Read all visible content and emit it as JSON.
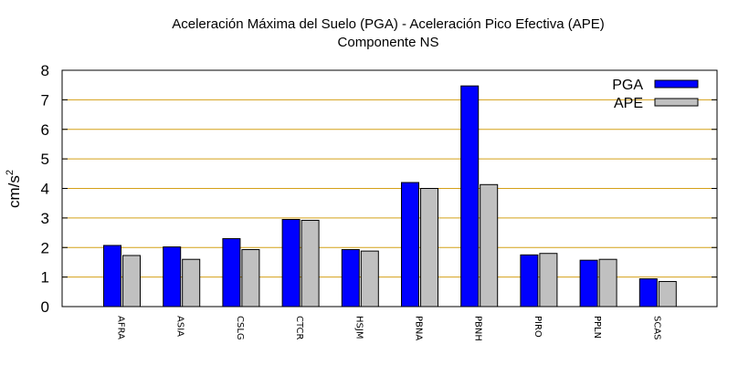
{
  "chart_data": {
    "type": "bar",
    "title": "Aceleración Máxima del Suelo (PGA) -  Aceleración Pico Efectiva (APE)",
    "subtitle": "Componente NS",
    "ylabel": "cm/s",
    "ylabel_superscript": "2",
    "xlabel": "",
    "ylim": [
      0,
      8
    ],
    "yticks": [
      "0",
      "1",
      "2",
      "3",
      "4",
      "5",
      "6",
      "7",
      "8"
    ],
    "grid": true,
    "legend_position": "top-right",
    "categories": [
      "AFRA",
      "ASIA",
      "CSLG",
      "CTCR",
      "HSJM",
      "PBNA",
      "PBNH",
      "PIRO",
      "PPLN",
      "SCAS"
    ],
    "series": [
      {
        "name": "PGA",
        "color": "#0000ff",
        "values": [
          2.07,
          2.02,
          2.3,
          2.95,
          1.93,
          4.2,
          7.47,
          1.75,
          1.57,
          0.94
        ]
      },
      {
        "name": "APE",
        "color": "#c0c0c0",
        "values": [
          1.73,
          1.6,
          1.93,
          2.92,
          1.88,
          4.0,
          4.13,
          1.8,
          1.6,
          0.85
        ]
      }
    ],
    "grid_color": "#d4a017"
  }
}
